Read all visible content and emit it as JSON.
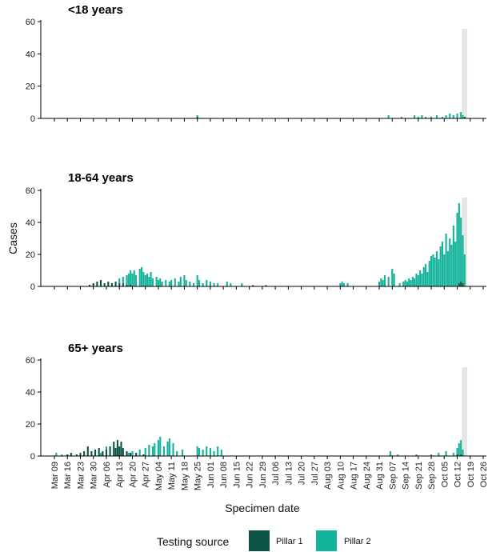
{
  "chart_data": [
    {
      "type": "bar",
      "stacked": true,
      "title": "<18 years",
      "xlabel": "",
      "ylabel": "",
      "ylim": [
        0,
        60
      ],
      "yticks": [
        0,
        20,
        40,
        60
      ],
      "series": [
        {
          "name": "Pillar 1",
          "color": "#0b5345",
          "points": [
            [
              "2020-05-25",
              1
            ],
            [
              "2020-10-16",
              1
            ]
          ]
        },
        {
          "name": "Pillar 2",
          "color": "#12b39a",
          "points": [
            [
              "2020-05-25",
              1
            ],
            [
              "2020-09-05",
              2
            ],
            [
              "2020-09-12",
              1
            ],
            [
              "2020-09-19",
              2
            ],
            [
              "2020-09-21",
              1
            ],
            [
              "2020-09-23",
              2
            ],
            [
              "2020-09-25",
              1
            ],
            [
              "2020-09-28",
              1
            ],
            [
              "2020-10-01",
              2
            ],
            [
              "2020-10-04",
              1
            ],
            [
              "2020-10-06",
              2
            ],
            [
              "2020-10-08",
              3
            ],
            [
              "2020-10-10",
              2
            ],
            [
              "2020-10-12",
              3
            ],
            [
              "2020-10-14",
              4
            ],
            [
              "2020-10-15",
              2
            ]
          ]
        }
      ]
    },
    {
      "type": "bar",
      "stacked": true,
      "title": "18-64 years",
      "xlabel": "",
      "ylabel": "Cases",
      "ylim": [
        0,
        60
      ],
      "yticks": [
        0,
        20,
        40,
        60
      ],
      "series": [
        {
          "name": "Pillar 1",
          "color": "#0b5345",
          "points": [
            [
              "2020-03-28",
              1
            ],
            [
              "2020-03-30",
              2
            ],
            [
              "2020-04-01",
              3
            ],
            [
              "2020-04-03",
              4
            ],
            [
              "2020-04-05",
              2
            ],
            [
              "2020-04-07",
              3
            ],
            [
              "2020-04-09",
              2
            ],
            [
              "2020-04-11",
              3
            ],
            [
              "2020-04-13",
              2
            ],
            [
              "2020-04-15",
              2
            ],
            [
              "2020-04-17",
              1
            ],
            [
              "2020-04-19",
              1
            ],
            [
              "2020-10-13",
              2
            ],
            [
              "2020-10-14",
              3
            ],
            [
              "2020-10-15",
              2
            ]
          ]
        },
        {
          "name": "Pillar 2",
          "color": "#12b39a",
          "points": [
            [
              "2020-04-13",
              3
            ],
            [
              "2020-04-15",
              4
            ],
            [
              "2020-04-17",
              6
            ],
            [
              "2020-04-18",
              8
            ],
            [
              "2020-04-19",
              9
            ],
            [
              "2020-04-20",
              8
            ],
            [
              "2020-04-21",
              10
            ],
            [
              "2020-04-22",
              7
            ],
            [
              "2020-04-24",
              11
            ],
            [
              "2020-04-25",
              12
            ],
            [
              "2020-04-26",
              9
            ],
            [
              "2020-04-27",
              7
            ],
            [
              "2020-04-28",
              8
            ],
            [
              "2020-04-29",
              6
            ],
            [
              "2020-04-30",
              9
            ],
            [
              "2020-05-01",
              5
            ],
            [
              "2020-05-03",
              6
            ],
            [
              "2020-05-04",
              4
            ],
            [
              "2020-05-05",
              5
            ],
            [
              "2020-05-06",
              3
            ],
            [
              "2020-05-08",
              4
            ],
            [
              "2020-05-10",
              3
            ],
            [
              "2020-05-11",
              4
            ],
            [
              "2020-05-13",
              5
            ],
            [
              "2020-05-15",
              3
            ],
            [
              "2020-05-16",
              6
            ],
            [
              "2020-05-18",
              7
            ],
            [
              "2020-05-19",
              4
            ],
            [
              "2020-05-21",
              3
            ],
            [
              "2020-05-23",
              2
            ],
            [
              "2020-05-25",
              7
            ],
            [
              "2020-05-26",
              4
            ],
            [
              "2020-05-28",
              2
            ],
            [
              "2020-05-30",
              4
            ],
            [
              "2020-06-01",
              3
            ],
            [
              "2020-06-03",
              2
            ],
            [
              "2020-06-05",
              2
            ],
            [
              "2020-06-10",
              3
            ],
            [
              "2020-06-12",
              2
            ],
            [
              "2020-06-18",
              2
            ],
            [
              "2020-06-24",
              1
            ],
            [
              "2020-07-01",
              1
            ],
            [
              "2020-08-10",
              2
            ],
            [
              "2020-08-11",
              3
            ],
            [
              "2020-08-12",
              2
            ],
            [
              "2020-08-14",
              2
            ],
            [
              "2020-08-31",
              3
            ],
            [
              "2020-09-01",
              5
            ],
            [
              "2020-09-02",
              4
            ],
            [
              "2020-09-03",
              7
            ],
            [
              "2020-09-05",
              6
            ],
            [
              "2020-09-07",
              11
            ],
            [
              "2020-09-08",
              8
            ],
            [
              "2020-09-11",
              2
            ],
            [
              "2020-09-13",
              3
            ],
            [
              "2020-09-14",
              4
            ],
            [
              "2020-09-15",
              3
            ],
            [
              "2020-09-16",
              5
            ],
            [
              "2020-09-17",
              4
            ],
            [
              "2020-09-18",
              6
            ],
            [
              "2020-09-19",
              5
            ],
            [
              "2020-09-20",
              8
            ],
            [
              "2020-09-21",
              7
            ],
            [
              "2020-09-22",
              10
            ],
            [
              "2020-09-23",
              8
            ],
            [
              "2020-09-24",
              12
            ],
            [
              "2020-09-25",
              14
            ],
            [
              "2020-09-26",
              9
            ],
            [
              "2020-09-27",
              16
            ],
            [
              "2020-09-28",
              19
            ],
            [
              "2020-09-29",
              20
            ],
            [
              "2020-09-30",
              18
            ],
            [
              "2020-10-01",
              22
            ],
            [
              "2020-10-02",
              17
            ],
            [
              "2020-10-03",
              25
            ],
            [
              "2020-10-04",
              28
            ],
            [
              "2020-10-05",
              20
            ],
            [
              "2020-10-06",
              33
            ],
            [
              "2020-10-07",
              22
            ],
            [
              "2020-10-08",
              30
            ],
            [
              "2020-10-09",
              26
            ],
            [
              "2020-10-10",
              38
            ],
            [
              "2020-10-11",
              28
            ],
            [
              "2020-10-12",
              46
            ],
            [
              "2020-10-13",
              50
            ],
            [
              "2020-10-14",
              40
            ],
            [
              "2020-10-15",
              30
            ],
            [
              "2020-10-16",
              20
            ]
          ]
        }
      ]
    },
    {
      "type": "bar",
      "stacked": true,
      "title": "65+ years",
      "xlabel": "Specimen date",
      "ylabel": "",
      "ylim": [
        0,
        60
      ],
      "yticks": [
        0,
        20,
        40,
        60
      ],
      "series": [
        {
          "name": "Pillar 1",
          "color": "#0b5345",
          "points": [
            [
              "2020-03-16",
              1
            ],
            [
              "2020-03-18",
              2
            ],
            [
              "2020-03-21",
              1
            ],
            [
              "2020-03-23",
              2
            ],
            [
              "2020-03-25",
              3
            ],
            [
              "2020-03-27",
              6
            ],
            [
              "2020-03-29",
              3
            ],
            [
              "2020-03-31",
              4
            ],
            [
              "2020-04-02",
              5
            ],
            [
              "2020-04-04",
              3
            ],
            [
              "2020-04-06",
              4
            ],
            [
              "2020-04-08",
              6
            ],
            [
              "2020-04-10",
              9
            ],
            [
              "2020-04-11",
              5
            ],
            [
              "2020-04-12",
              10
            ],
            [
              "2020-04-13",
              6
            ],
            [
              "2020-04-14",
              9
            ],
            [
              "2020-04-15",
              5
            ],
            [
              "2020-04-17",
              3
            ],
            [
              "2020-04-19",
              2
            ],
            [
              "2020-04-22",
              2
            ],
            [
              "2020-04-26",
              1
            ],
            [
              "2020-10-12",
              1
            ],
            [
              "2020-10-14",
              1
            ]
          ]
        },
        {
          "name": "Pillar 2",
          "color": "#12b39a",
          "points": [
            [
              "2020-03-10",
              2
            ],
            [
              "2020-03-13",
              1
            ],
            [
              "2020-04-03",
              2
            ],
            [
              "2020-04-06",
              2
            ],
            [
              "2020-04-18",
              2
            ],
            [
              "2020-04-20",
              3
            ],
            [
              "2020-04-24",
              4
            ],
            [
              "2020-04-27",
              5
            ],
            [
              "2020-04-29",
              7
            ],
            [
              "2020-05-01",
              6
            ],
            [
              "2020-05-02",
              8
            ],
            [
              "2020-05-04",
              10
            ],
            [
              "2020-05-05",
              12
            ],
            [
              "2020-05-07",
              6
            ],
            [
              "2020-05-09",
              9
            ],
            [
              "2020-05-10",
              11
            ],
            [
              "2020-05-12",
              8
            ],
            [
              "2020-05-14",
              3
            ],
            [
              "2020-05-17",
              4
            ],
            [
              "2020-05-25",
              6
            ],
            [
              "2020-05-26",
              5
            ],
            [
              "2020-05-28",
              4
            ],
            [
              "2020-05-30",
              6
            ],
            [
              "2020-06-01",
              5
            ],
            [
              "2020-06-03",
              3
            ],
            [
              "2020-06-05",
              6
            ],
            [
              "2020-06-07",
              4
            ],
            [
              "2020-09-06",
              3
            ],
            [
              "2020-09-10",
              1
            ],
            [
              "2020-09-20",
              1
            ],
            [
              "2020-09-28",
              1
            ],
            [
              "2020-10-02",
              2
            ],
            [
              "2020-10-06",
              3
            ],
            [
              "2020-10-10",
              2
            ],
            [
              "2020-10-12",
              4
            ],
            [
              "2020-10-13",
              8
            ],
            [
              "2020-10-14",
              9
            ],
            [
              "2020-10-15",
              4
            ]
          ]
        }
      ]
    }
  ],
  "shared": {
    "x_ticks": [
      "Mar 09",
      "Mar 16",
      "Mar 23",
      "Mar 30",
      "Apr 06",
      "Apr 13",
      "Apr 20",
      "Apr 27",
      "May 04",
      "May 11",
      "May 18",
      "May 25",
      "Jun 01",
      "Jun 08",
      "Jun 15",
      "Jun 22",
      "Jun 29",
      "Jul 06",
      "Jul 13",
      "Jul 20",
      "Jul 27",
      "Aug 03",
      "Aug 10",
      "Aug 17",
      "Aug 24",
      "Aug 31",
      "Sep 07",
      "Sep 14",
      "Sep 21",
      "Sep 28",
      "Oct 05",
      "Oct 12",
      "Oct 19",
      "Oct 26"
    ],
    "x_range": [
      "2020-03-09",
      "2020-10-26"
    ],
    "shaded_region": {
      "start": "2020-10-15",
      "end": "2020-10-17",
      "color": "#e5e5e5"
    },
    "legend": {
      "title": "Testing source",
      "position": "bottom",
      "items": [
        "Pillar 1",
        "Pillar 2"
      ]
    }
  }
}
